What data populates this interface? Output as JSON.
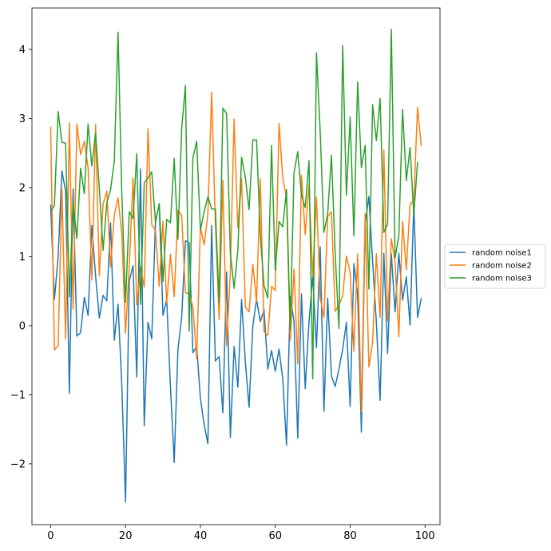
{
  "chart_data": {
    "type": "line",
    "title": "",
    "xlabel": "",
    "ylabel": "",
    "xlim": [
      -5,
      104
    ],
    "ylim": [
      -2.88,
      4.6
    ],
    "xticks": [
      0,
      20,
      40,
      60,
      80,
      100
    ],
    "yticks": [
      -2,
      -1,
      0,
      1,
      2,
      3,
      4
    ],
    "grid": false,
    "legend": {
      "position": "outside-right"
    },
    "x_start": 0,
    "x_step": 1,
    "series": [
      {
        "name": "random noise1",
        "color": "#1f77b4",
        "values": [
          1.75,
          0.38,
          1.0,
          2.24,
          1.95,
          -0.98,
          1.98,
          -0.15,
          -0.1,
          0.41,
          0.15,
          1.45,
          0.72,
          0.11,
          0.44,
          0.36,
          1.49,
          -0.21,
          0.31,
          -0.85,
          -2.55,
          0.65,
          0.87,
          -0.74,
          2.27,
          -1.45,
          0.05,
          -0.19,
          1.52,
          1.75,
          0.15,
          0.38,
          -0.89,
          -1.98,
          -0.34,
          0.12,
          1.23,
          1.2,
          -0.39,
          -0.3,
          -1.05,
          -1.43,
          -1.71,
          1.45,
          -0.51,
          -0.45,
          -1.26,
          0.78,
          -1.62,
          -0.3,
          -0.89,
          0.38,
          -0.52,
          -1.18,
          0.0,
          0.38,
          0.06,
          0.23,
          -0.63,
          -0.36,
          -0.66,
          -0.34,
          -0.77,
          -1.73,
          0.42,
          0.06,
          -1.63,
          0.46,
          -0.91,
          0.05,
          0.72,
          -0.32,
          1.14,
          -1.24,
          0.4,
          -0.73,
          -0.88,
          -0.63,
          -0.34,
          0.05,
          -1.17,
          0.9,
          0.45,
          -1.54,
          1.48,
          1.87,
          0.93,
          0.05,
          -1.08,
          1.05,
          -0.4,
          1.04,
          0.2,
          1.05,
          0.37,
          0.71,
          0.01,
          1.76,
          0.12,
          0.4
        ]
      },
      {
        "name": "random noise2",
        "color": "#ff7f0e",
        "values": [
          2.88,
          -0.35,
          -0.29,
          1.98,
          -0.19,
          2.94,
          0.24,
          2.92,
          2.48,
          2.67,
          2.29,
          0.66,
          2.91,
          0.72,
          1.76,
          1.95,
          0.85,
          1.6,
          1.85,
          1.33,
          -0.11,
          0.87,
          2.14,
          0.3,
          0.85,
          0.56,
          2.85,
          1.46,
          1.38,
          0.57,
          1.51,
          0.33,
          1.03,
          0.42,
          1.67,
          1.6,
          0.48,
          0.46,
          0.27,
          -0.48,
          1.43,
          1.17,
          1.62,
          3.38,
          1.48,
          0.09,
          2.11,
          -0.29,
          0.79,
          2.99,
          1.42,
          2.13,
          0.27,
          0.2,
          0.89,
          0.34,
          2.13,
          -0.09,
          -0.14,
          0.57,
          0.51,
          2.93,
          2.14,
          1.85,
          -0.21,
          0.82,
          -0.55,
          2.18,
          1.32,
          2.04,
          0.71,
          1.86,
          0.4,
          0.12,
          1.58,
          1.65,
          0.21,
          0.3,
          0.43,
          1.01,
          0.77,
          -0.37,
          1.04,
          -1.25,
          1.62,
          -0.6,
          -0.24,
          1.04,
          0.12,
          2.54,
          0.07,
          1.26,
          0.92,
          -0.16,
          1.51,
          0.81,
          1.76,
          1.81,
          3.16,
          2.6
        ]
      },
      {
        "name": "random noise3",
        "color": "#2ca02c",
        "values": [
          1.65,
          1.74,
          3.1,
          2.66,
          2.64,
          0.42,
          1.78,
          1.26,
          2.28,
          1.91,
          2.92,
          2.31,
          2.79,
          1.99,
          1.09,
          1.78,
          1.97,
          2.38,
          4.25,
          1.92,
          0.34,
          1.65,
          1.55,
          2.49,
          0.31,
          2.07,
          2.14,
          2.23,
          1.49,
          1.77,
          0.64,
          1.54,
          1.49,
          2.42,
          1.25,
          2.86,
          3.48,
          -0.08,
          2.43,
          2.67,
          1.39,
          1.65,
          1.87,
          1.69,
          1.69,
          0.33,
          3.15,
          3.07,
          1.05,
          0.54,
          1.09,
          2.44,
          2.15,
          1.68,
          2.69,
          2.69,
          1.3,
          0.58,
          0.4,
          2.61,
          0.8,
          1.51,
          1.43,
          1.97,
          -0.05,
          2.21,
          2.52,
          1.89,
          1.71,
          2.39,
          -0.77,
          3.95,
          2.81,
          1.35,
          1.62,
          2.47,
          1.05,
          -0.04,
          4.06,
          1.89,
          3.02,
          1.3,
          3.53,
          2.29,
          2.61,
          0.53,
          3.2,
          2.68,
          3.29,
          1.35,
          1.47,
          4.29,
          0.98,
          1.3,
          3.13,
          2.1,
          2.58,
          1.6,
          2.37
        ]
      }
    ]
  }
}
